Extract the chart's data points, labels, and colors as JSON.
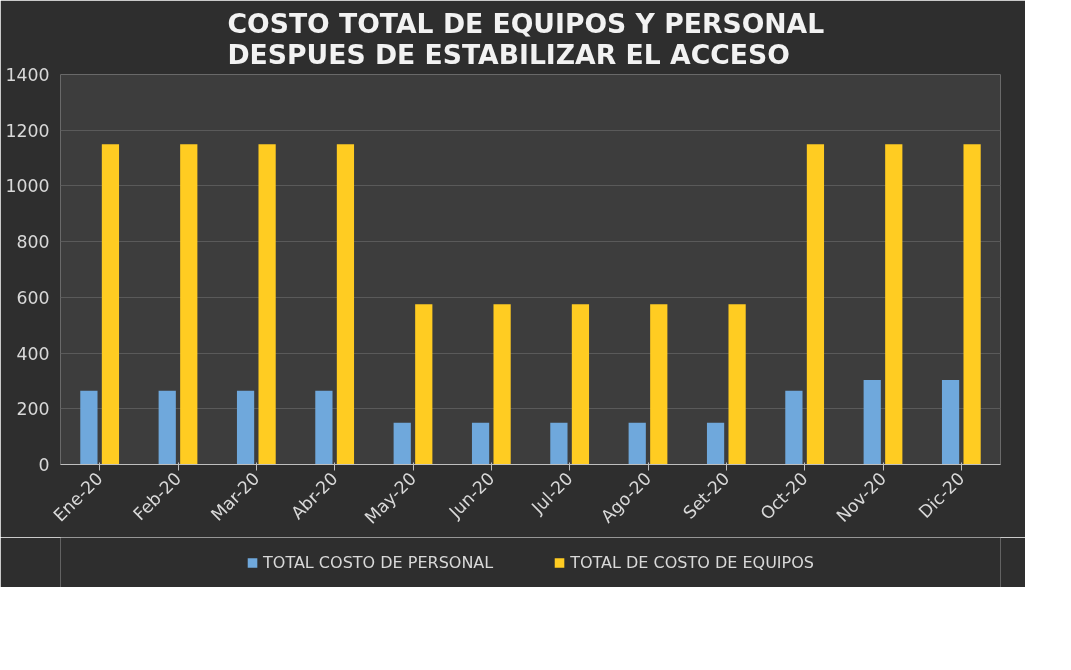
{
  "chart_data": {
    "type": "bar",
    "title": "COSTO TOTAL  DE EQUIPOS Y PERSONAL\nDESPUES DE ESTABILIZAR EL ACCESO",
    "categories": [
      "Ene-20",
      "Feb-20",
      "Mar-20",
      "Abr-20",
      "May-20",
      "Jun-20",
      "Jul-20",
      "Ago-20",
      "Set-20",
      "Oct-20",
      "Nov-20",
      "Dic-20"
    ],
    "series": [
      {
        "name": "TOTAL COSTO DE PERSONAL",
        "color": "#6fa8dc",
        "values": [
          265,
          265,
          265,
          265,
          150,
          150,
          150,
          150,
          150,
          265,
          303,
          303
        ]
      },
      {
        "name": "TOTAL DE COSTO DE EQUIPOS",
        "color": "#ffcc22",
        "values": [
          1150,
          1150,
          1150,
          1150,
          575,
          575,
          575,
          575,
          575,
          1150,
          1150,
          1150
        ]
      }
    ],
    "ylim": [
      0,
      1400
    ],
    "yticks": [
      0,
      200,
      400,
      600,
      800,
      1000,
      1200,
      1400
    ],
    "grid": "y",
    "legend": "bottom"
  }
}
